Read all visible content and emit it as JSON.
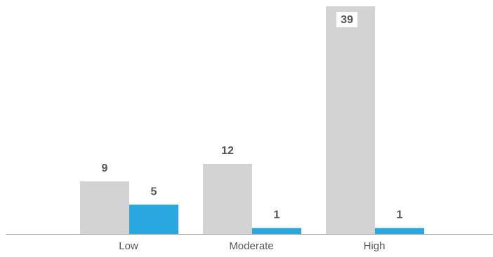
{
  "chart_data": {
    "type": "bar",
    "categories": [
      "Low",
      "Moderate",
      "High"
    ],
    "series": [
      {
        "color": "#d3d3d3",
        "values": [
          9,
          12,
          39
        ]
      },
      {
        "color": "#29a8e0",
        "values": [
          5,
          1,
          1
        ]
      }
    ],
    "ylim": [
      0,
      39
    ],
    "grid": false,
    "value_label_color": "#555555",
    "axis_color": "#999999"
  }
}
